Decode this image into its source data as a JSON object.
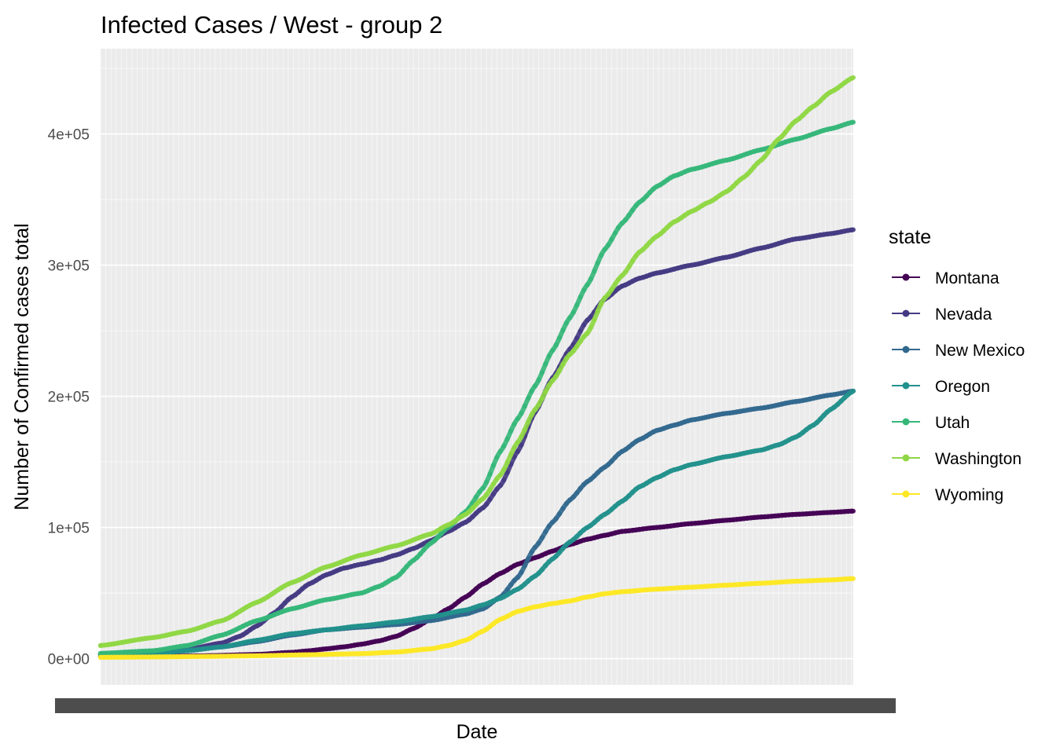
{
  "chart_data": {
    "type": "line",
    "title": "Infected Cases / West - group 2",
    "xlabel": "Date",
    "ylabel": "Number of Confirmed cases total",
    "x_axis": "daily dates (tick labels overlap and are unreadable)",
    "n_points": 300,
    "ylim": [
      -20000,
      465000
    ],
    "yticks": [
      0,
      100000,
      200000,
      300000,
      400000
    ],
    "ytick_labels": [
      "0e+00",
      "1e+05",
      "2e+05",
      "3e+05",
      "4e+05"
    ],
    "grid": true,
    "legend": {
      "title": "state",
      "position": "right"
    },
    "series": [
      {
        "name": "Montana",
        "color": "#440154",
        "points": [
          [
            0,
            1500
          ],
          [
            30,
            1600
          ],
          [
            60,
            2200
          ],
          [
            90,
            3200
          ],
          [
            110,
            4800
          ],
          [
            120,
            6000
          ],
          [
            130,
            7500
          ],
          [
            140,
            9000
          ],
          [
            150,
            11000
          ],
          [
            160,
            13500
          ],
          [
            170,
            17000
          ],
          [
            180,
            23000
          ],
          [
            190,
            30000
          ],
          [
            200,
            38000
          ],
          [
            210,
            47000
          ],
          [
            220,
            57000
          ],
          [
            230,
            65000
          ],
          [
            240,
            72000
          ],
          [
            250,
            77000
          ],
          [
            260,
            82000
          ],
          [
            270,
            87000
          ],
          [
            280,
            91000
          ],
          [
            290,
            94000
          ],
          [
            300,
            97000
          ],
          [
            320,
            100000
          ],
          [
            340,
            103000
          ],
          [
            360,
            105500
          ],
          [
            380,
            108000
          ],
          [
            400,
            110000
          ],
          [
            420,
            111500
          ],
          [
            433,
            112500
          ]
        ]
      },
      {
        "name": "Nevada",
        "color": "#443A83",
        "points": [
          [
            0,
            3500
          ],
          [
            30,
            5000
          ],
          [
            50,
            7000
          ],
          [
            70,
            12000
          ],
          [
            80,
            17000
          ],
          [
            90,
            25000
          ],
          [
            100,
            35000
          ],
          [
            110,
            47000
          ],
          [
            120,
            57000
          ],
          [
            130,
            64000
          ],
          [
            140,
            69000
          ],
          [
            150,
            72000
          ],
          [
            160,
            75000
          ],
          [
            170,
            79000
          ],
          [
            180,
            84000
          ],
          [
            190,
            90000
          ],
          [
            200,
            97000
          ],
          [
            210,
            104000
          ],
          [
            220,
            115000
          ],
          [
            230,
            132000
          ],
          [
            240,
            158000
          ],
          [
            250,
            188000
          ],
          [
            260,
            214000
          ],
          [
            270,
            236000
          ],
          [
            280,
            258000
          ],
          [
            290,
            274000
          ],
          [
            300,
            284000
          ],
          [
            310,
            290000
          ],
          [
            320,
            294000
          ],
          [
            340,
            300000
          ],
          [
            360,
            306000
          ],
          [
            380,
            313000
          ],
          [
            400,
            320000
          ],
          [
            420,
            324000
          ],
          [
            433,
            327000
          ]
        ]
      },
      {
        "name": "New Mexico",
        "color": "#31688E",
        "points": [
          [
            0,
            3000
          ],
          [
            30,
            4500
          ],
          [
            50,
            6500
          ],
          [
            70,
            9000
          ],
          [
            90,
            13000
          ],
          [
            110,
            18000
          ],
          [
            130,
            22000
          ],
          [
            150,
            24000
          ],
          [
            170,
            26000
          ],
          [
            190,
            29000
          ],
          [
            210,
            34000
          ],
          [
            220,
            38000
          ],
          [
            230,
            47000
          ],
          [
            240,
            62000
          ],
          [
            250,
            85000
          ],
          [
            260,
            104000
          ],
          [
            270,
            121000
          ],
          [
            280,
            135000
          ],
          [
            290,
            146000
          ],
          [
            300,
            158000
          ],
          [
            310,
            167000
          ],
          [
            320,
            174000
          ],
          [
            330,
            178000
          ],
          [
            340,
            182000
          ],
          [
            360,
            187000
          ],
          [
            380,
            191000
          ],
          [
            400,
            196000
          ],
          [
            420,
            201000
          ],
          [
            433,
            204000
          ]
        ]
      },
      {
        "name": "Oregon",
        "color": "#21918C",
        "points": [
          [
            0,
            3000
          ],
          [
            30,
            4000
          ],
          [
            50,
            6000
          ],
          [
            70,
            9000
          ],
          [
            90,
            14000
          ],
          [
            110,
            19000
          ],
          [
            130,
            22000
          ],
          [
            150,
            25000
          ],
          [
            170,
            28000
          ],
          [
            190,
            32000
          ],
          [
            210,
            37000
          ],
          [
            220,
            41000
          ],
          [
            230,
            46000
          ],
          [
            240,
            53000
          ],
          [
            250,
            63000
          ],
          [
            260,
            76000
          ],
          [
            270,
            89000
          ],
          [
            280,
            100000
          ],
          [
            290,
            110000
          ],
          [
            300,
            120000
          ],
          [
            310,
            131000
          ],
          [
            320,
            138000
          ],
          [
            330,
            144000
          ],
          [
            340,
            148000
          ],
          [
            360,
            154000
          ],
          [
            380,
            159000
          ],
          [
            390,
            163000
          ],
          [
            400,
            169000
          ],
          [
            410,
            178000
          ],
          [
            420,
            190000
          ],
          [
            433,
            204000
          ]
        ]
      },
      {
        "name": "Utah",
        "color": "#35B779",
        "points": [
          [
            0,
            4000
          ],
          [
            30,
            6000
          ],
          [
            50,
            10000
          ],
          [
            70,
            18000
          ],
          [
            90,
            29000
          ],
          [
            110,
            38000
          ],
          [
            130,
            45000
          ],
          [
            150,
            50000
          ],
          [
            160,
            55000
          ],
          [
            170,
            62000
          ],
          [
            180,
            75000
          ],
          [
            190,
            88000
          ],
          [
            200,
            100000
          ],
          [
            210,
            112000
          ],
          [
            220,
            130000
          ],
          [
            230,
            158000
          ],
          [
            240,
            183000
          ],
          [
            250,
            208000
          ],
          [
            260,
            235000
          ],
          [
            270,
            260000
          ],
          [
            280,
            285000
          ],
          [
            290,
            312000
          ],
          [
            300,
            332000
          ],
          [
            310,
            348000
          ],
          [
            320,
            360000
          ],
          [
            330,
            368000
          ],
          [
            340,
            373000
          ],
          [
            360,
            380000
          ],
          [
            380,
            388000
          ],
          [
            400,
            396000
          ],
          [
            420,
            404000
          ],
          [
            433,
            409000
          ]
        ]
      },
      {
        "name": "Washington",
        "color": "#8FD744",
        "points": [
          [
            0,
            10000
          ],
          [
            30,
            16000
          ],
          [
            50,
            21000
          ],
          [
            70,
            29000
          ],
          [
            90,
            43000
          ],
          [
            110,
            58000
          ],
          [
            130,
            70000
          ],
          [
            150,
            79000
          ],
          [
            170,
            86000
          ],
          [
            190,
            95000
          ],
          [
            200,
            102000
          ],
          [
            210,
            110000
          ],
          [
            220,
            122000
          ],
          [
            230,
            140000
          ],
          [
            240,
            165000
          ],
          [
            250,
            190000
          ],
          [
            260,
            212000
          ],
          [
            270,
            232000
          ],
          [
            280,
            248000
          ],
          [
            290,
            275000
          ],
          [
            300,
            292000
          ],
          [
            310,
            310000
          ],
          [
            320,
            322000
          ],
          [
            330,
            333000
          ],
          [
            340,
            341000
          ],
          [
            350,
            348000
          ],
          [
            360,
            356000
          ],
          [
            370,
            367000
          ],
          [
            380,
            380000
          ],
          [
            390,
            396000
          ],
          [
            400,
            410000
          ],
          [
            410,
            421000
          ],
          [
            420,
            432000
          ],
          [
            433,
            443000
          ]
        ]
      },
      {
        "name": "Wyoming",
        "color": "#FDE725",
        "points": [
          [
            0,
            1000
          ],
          [
            30,
            1300
          ],
          [
            60,
            1700
          ],
          [
            90,
            2200
          ],
          [
            120,
            3000
          ],
          [
            150,
            3800
          ],
          [
            170,
            5000
          ],
          [
            190,
            7500
          ],
          [
            200,
            10000
          ],
          [
            210,
            14000
          ],
          [
            220,
            21000
          ],
          [
            230,
            30000
          ],
          [
            240,
            36000
          ],
          [
            250,
            39500
          ],
          [
            260,
            42000
          ],
          [
            270,
            44000
          ],
          [
            280,
            47000
          ],
          [
            290,
            49500
          ],
          [
            300,
            51000
          ],
          [
            320,
            53000
          ],
          [
            340,
            54500
          ],
          [
            360,
            56000
          ],
          [
            380,
            57500
          ],
          [
            400,
            59000
          ],
          [
            420,
            60000
          ],
          [
            433,
            61000
          ]
        ]
      }
    ]
  }
}
